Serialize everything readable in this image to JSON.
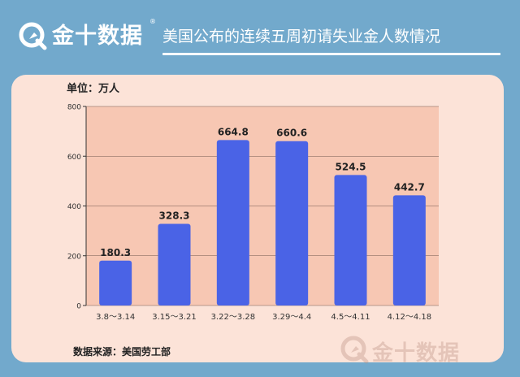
{
  "header": {
    "logo_text": "金十数据",
    "logo_mark": "®",
    "title": "美国公布的连续五周初请失业金人数情况"
  },
  "unit_label": "单位：万人",
  "source_label": "数据来源：美国劳工部",
  "watermark": {
    "text": "金十数据"
  },
  "colors": {
    "header_bg": "#72a9cc",
    "card_bg": "#fce3d8",
    "plot_bg": "#f7c7b3",
    "bar": "#4a63e6"
  },
  "chart_data": {
    "type": "bar",
    "title": "",
    "xlabel": "",
    "ylabel": "单位：万人",
    "categories": [
      "3.8～3.14",
      "3.15～3.21",
      "3.22～3.28",
      "3.29～4.4",
      "4.5～4.11",
      "4.12～4.18"
    ],
    "values": [
      180.3,
      328.3,
      664.8,
      660.6,
      524.5,
      442.7
    ],
    "value_labels": [
      "180.3",
      "328.3",
      "664.8",
      "660.6",
      "524.5",
      "442.7"
    ],
    "ylim": [
      0,
      800
    ],
    "yticks": [
      0,
      200,
      400,
      600,
      800
    ],
    "ytick_labels": [
      "0",
      "200",
      "400",
      "600",
      "800"
    ],
    "grid": true
  }
}
